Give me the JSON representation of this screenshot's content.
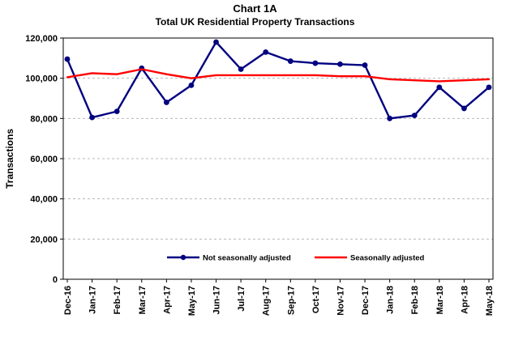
{
  "header": {
    "title": "Chart 1A",
    "subtitle": "Total UK Residential Property Transactions"
  },
  "chart_data": {
    "type": "line",
    "title": "Chart 1A",
    "subtitle": "Total UK Residential Property Transactions",
    "xlabel": "",
    "ylabel": "Transactions",
    "ylim": [
      0,
      120000
    ],
    "yticks": [
      0,
      20000,
      40000,
      60000,
      80000,
      100000,
      120000
    ],
    "ytick_labels": [
      "0",
      "20,000",
      "40,000",
      "60,000",
      "80,000",
      "100,000",
      "120,000"
    ],
    "grid": "horizontal-dashed",
    "legend_position": "bottom-inside",
    "categories": [
      "Dec-16",
      "Jan-17",
      "Feb-17",
      "Mar-17",
      "Apr-17",
      "May-17",
      "Jun-17",
      "Jul-17",
      "Aug-17",
      "Sep-17",
      "Oct-17",
      "Nov-17",
      "Dec-17",
      "Jan-18",
      "Feb-18",
      "Mar-18",
      "Apr-18",
      "May-18"
    ],
    "series": [
      {
        "name": "Not seasonally adjusted",
        "color": "#000080",
        "markers": true,
        "values": [
          109500,
          80500,
          83500,
          105000,
          88000,
          96500,
          118000,
          104500,
          113000,
          108500,
          107500,
          107000,
          106500,
          80000,
          81500,
          95500,
          85000,
          95500
        ]
      },
      {
        "name": "Seasonally adjusted",
        "color": "#FF0000",
        "markers": false,
        "values": [
          100500,
          102500,
          102000,
          104500,
          102000,
          100000,
          101500,
          101500,
          101500,
          101500,
          101500,
          101000,
          101000,
          99500,
          99000,
          98500,
          99000,
          99500
        ]
      }
    ]
  }
}
